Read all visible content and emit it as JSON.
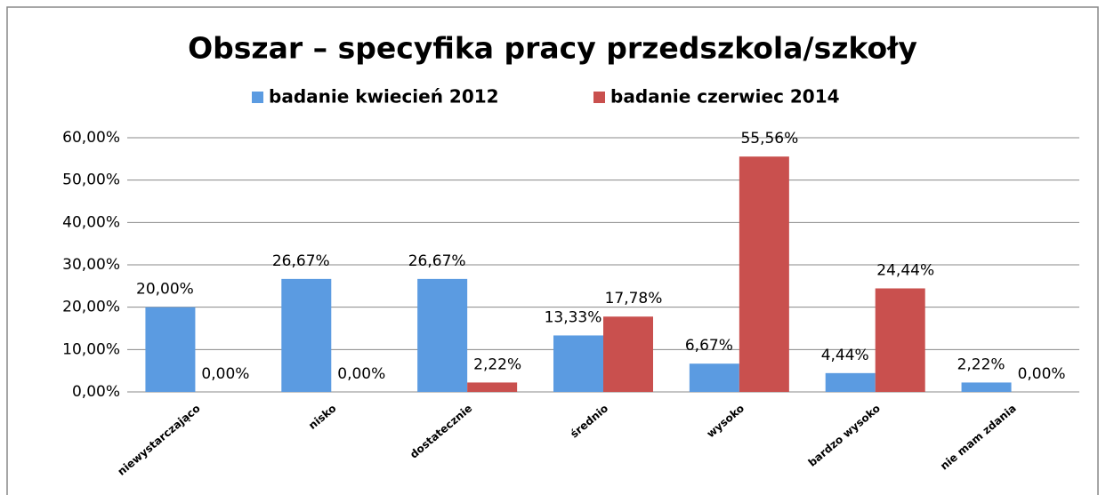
{
  "chart_data": {
    "type": "bar",
    "title": "Obszar – specyfika pracy przedszkola/szkoły",
    "categories": [
      "niewystarczająco",
      "nisko",
      "dostatecznie",
      "średnio",
      "wysoko",
      "bardzo wysoko",
      "nie mam zdania"
    ],
    "series": [
      {
        "name": "badanie kwiecień 2012",
        "color": "#5b9be1",
        "values": [
          20,
          26.67,
          26.67,
          13.33,
          6.67,
          4.44,
          2.22
        ],
        "value_labels": [
          "20,00%",
          "26,67%",
          "26,67%",
          "13,33%",
          "6,67%",
          "4,44%",
          "2,22%"
        ]
      },
      {
        "name": "badanie czerwiec 2014",
        "color": "#c9504e",
        "values": [
          0,
          0,
          2.22,
          17.78,
          55.56,
          24.44,
          0
        ],
        "value_labels": [
          "0,00%",
          "0,00%",
          "2,22%",
          "17,78%",
          "55,56%",
          "24,44%",
          "0,00%"
        ]
      }
    ],
    "ylim": [
      0,
      60
    ],
    "yticks": [
      {
        "value": 0,
        "label": "0,00%"
      },
      {
        "value": 10,
        "label": "10,00%"
      },
      {
        "value": 20,
        "label": "20,00%"
      },
      {
        "value": 30,
        "label": "30,00%"
      },
      {
        "value": 40,
        "label": "40,00%"
      },
      {
        "value": 50,
        "label": "50,00%"
      },
      {
        "value": 60,
        "label": "60,00%"
      }
    ],
    "grid": true,
    "legend": "top"
  }
}
